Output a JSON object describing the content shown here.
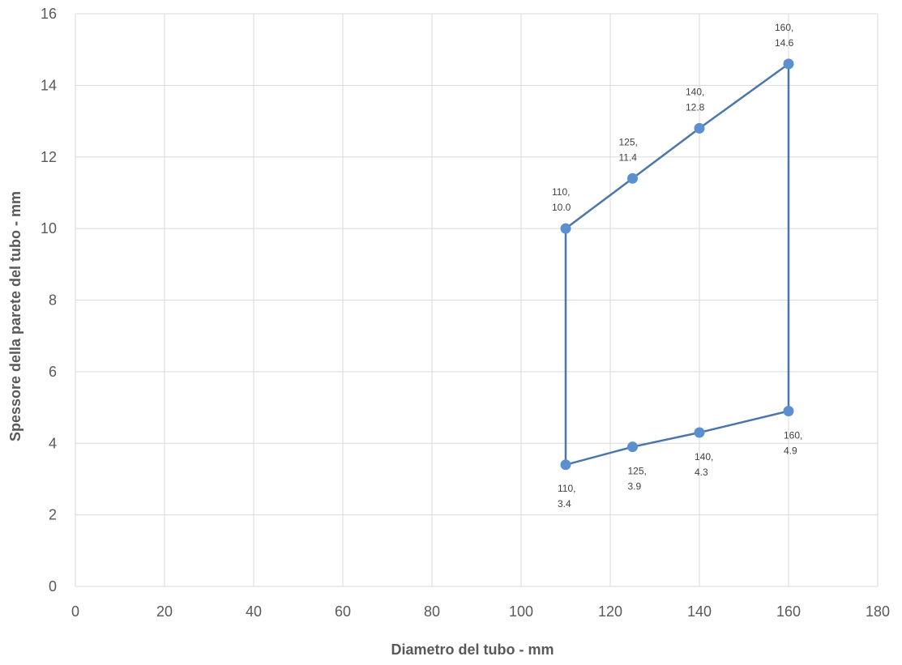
{
  "chart_data": {
    "type": "scatter",
    "title": "",
    "xlabel": "Diametro del tubo - mm",
    "ylabel": "Spessore della parete del tubo - mm",
    "xlim": [
      0,
      180
    ],
    "ylim": [
      0,
      16
    ],
    "x_ticks": [
      0,
      20,
      40,
      60,
      80,
      100,
      120,
      140,
      160,
      180
    ],
    "y_ticks": [
      0,
      2,
      4,
      6,
      8,
      10,
      12,
      14,
      16
    ],
    "grid": true,
    "legend": "none",
    "series_color": "#5b8fcf",
    "line_color": "#4a76a8",
    "series": [
      {
        "points": [
          {
            "x": 110,
            "y": 10.0,
            "label": [
              "110,",
              "10.0"
            ],
            "label_pos": "above"
          },
          {
            "x": 125,
            "y": 11.4,
            "label": [
              "125,",
              "11.4"
            ],
            "label_pos": "above"
          },
          {
            "x": 140,
            "y": 12.8,
            "label": [
              "140,",
              "12.8"
            ],
            "label_pos": "above"
          },
          {
            "x": 160,
            "y": 14.6,
            "label": [
              "160,",
              "14.6"
            ],
            "label_pos": "above"
          },
          {
            "x": 160,
            "y": 4.9,
            "label": [
              "160,",
              "4.9"
            ],
            "label_pos": "below"
          },
          {
            "x": 140,
            "y": 4.3,
            "label": [
              "140,",
              "4.3"
            ],
            "label_pos": "below"
          },
          {
            "x": 125,
            "y": 3.9,
            "label": [
              "125,",
              "3.9"
            ],
            "label_pos": "below"
          },
          {
            "x": 110,
            "y": 3.4,
            "label": [
              "110,",
              "3.4"
            ],
            "label_pos": "below"
          }
        ]
      }
    ]
  }
}
